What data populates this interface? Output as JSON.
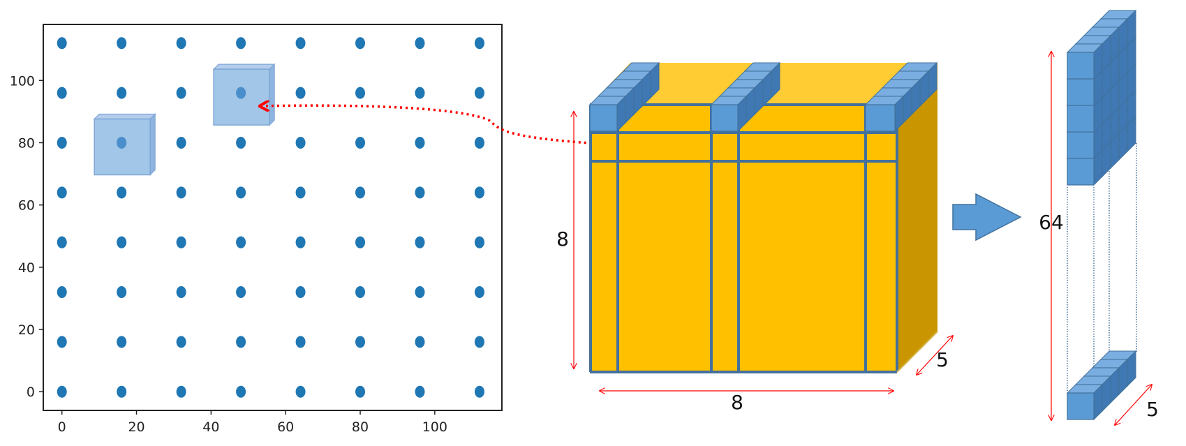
{
  "chart_data": {
    "type": "scatter",
    "x": [
      0,
      16,
      32,
      48,
      64,
      80,
      96,
      112
    ],
    "y": [
      0,
      16,
      32,
      48,
      64,
      80,
      96,
      112
    ],
    "grid_points": "8 x 8",
    "xlim": [
      -5,
      118
    ],
    "ylim": [
      -6,
      118
    ],
    "xticks": [
      "0",
      "20",
      "40",
      "60",
      "80",
      "100"
    ],
    "yticks": [
      "0",
      "20",
      "40",
      "60",
      "80",
      "100"
    ],
    "title": "",
    "xlabel": "",
    "ylabel": "",
    "grid": false,
    "point_color": "#1f77b4",
    "highlighted_points": [
      [
        16,
        80
      ],
      [
        48,
        96
      ]
    ]
  },
  "tensor": {
    "height_label": "8",
    "width_label": "8",
    "depth_label": "5",
    "front_color": "#ffc000",
    "side_color": "#c99500",
    "line_color": "#44709c"
  },
  "output": {
    "height_label": "64",
    "depth_label": "5",
    "cube_color": "#5b9bd5"
  },
  "colors": {
    "connector": "#ff0000",
    "dimension_line": "#ff0000",
    "arrow": "#5b9bd5"
  }
}
